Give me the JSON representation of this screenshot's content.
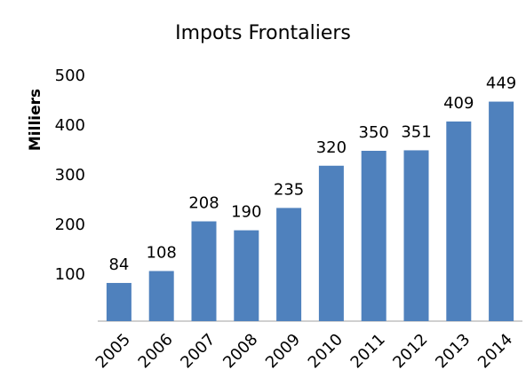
{
  "chart_data": {
    "type": "bar",
    "title": "Impots Frontaliers",
    "y_label": "Milliers",
    "categories": [
      "2005",
      "2006",
      "2007",
      "2008",
      "2009",
      "2010",
      "2011",
      "2012",
      "2013",
      "2014"
    ],
    "values": [
      84,
      108,
      208,
      190,
      235,
      320,
      350,
      351,
      409,
      449
    ],
    "color": "#4f81bd",
    "ylim": [
      0,
      500
    ],
    "yticks": [
      100,
      200,
      300,
      400,
      500
    ],
    "grid": false
  }
}
